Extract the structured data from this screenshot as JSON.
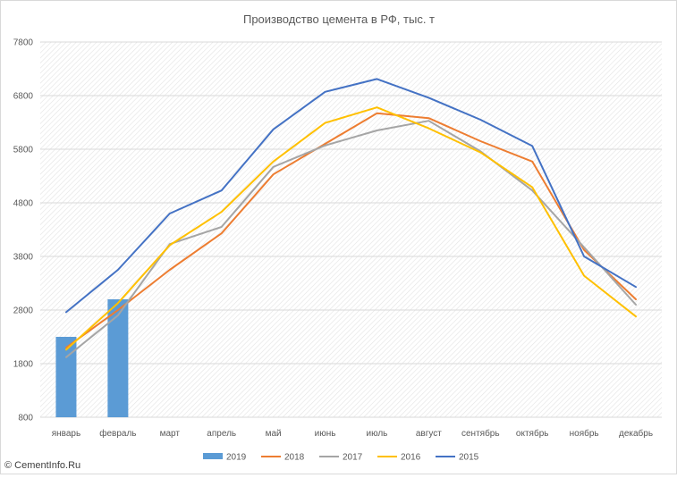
{
  "chart_data": {
    "type": "bar+line",
    "title": "Производство цемента в РФ, тыс. т",
    "xlabel": "",
    "ylabel": "",
    "ylim": [
      800,
      7800
    ],
    "yticks": [
      "800",
      "1800",
      "2800",
      "3800",
      "4800",
      "5800",
      "6800",
      "7800"
    ],
    "ytick_values": [
      800,
      1800,
      2800,
      3800,
      4800,
      5800,
      6800,
      7800
    ],
    "categories": [
      "январь",
      "февраль",
      "март",
      "апрель",
      "май",
      "июнь",
      "июль",
      "август",
      "сентябрь",
      "октябрь",
      "ноябрь",
      "декабрь"
    ],
    "grid": true,
    "legend_position": "bottom",
    "bar_series": {
      "name": "2019",
      "color": "#5b9bd5",
      "values": [
        2300,
        3000,
        null,
        null,
        null,
        null,
        null,
        null,
        null,
        null,
        null,
        null
      ]
    },
    "line_series": [
      {
        "name": "2018",
        "color": "#ed7d31",
        "values": [
          2100,
          2800,
          3550,
          4230,
          5330,
          5900,
          6470,
          6380,
          5950,
          5570,
          3920,
          3000
        ]
      },
      {
        "name": "2017",
        "color": "#a5a5a5",
        "values": [
          1920,
          2700,
          4030,
          4350,
          5470,
          5870,
          6150,
          6330,
          5760,
          5030,
          3970,
          2900
        ]
      },
      {
        "name": "2016",
        "color": "#ffc000",
        "values": [
          2060,
          2930,
          4010,
          4630,
          5570,
          6290,
          6580,
          6190,
          5740,
          5090,
          3440,
          2680
        ]
      },
      {
        "name": "2015",
        "color": "#4472c4",
        "values": [
          2760,
          3550,
          4600,
          5030,
          6170,
          6870,
          7110,
          6760,
          6350,
          5860,
          3800,
          3230
        ]
      }
    ]
  },
  "watermark": {
    "text": "© CementInfo.Ru"
  }
}
